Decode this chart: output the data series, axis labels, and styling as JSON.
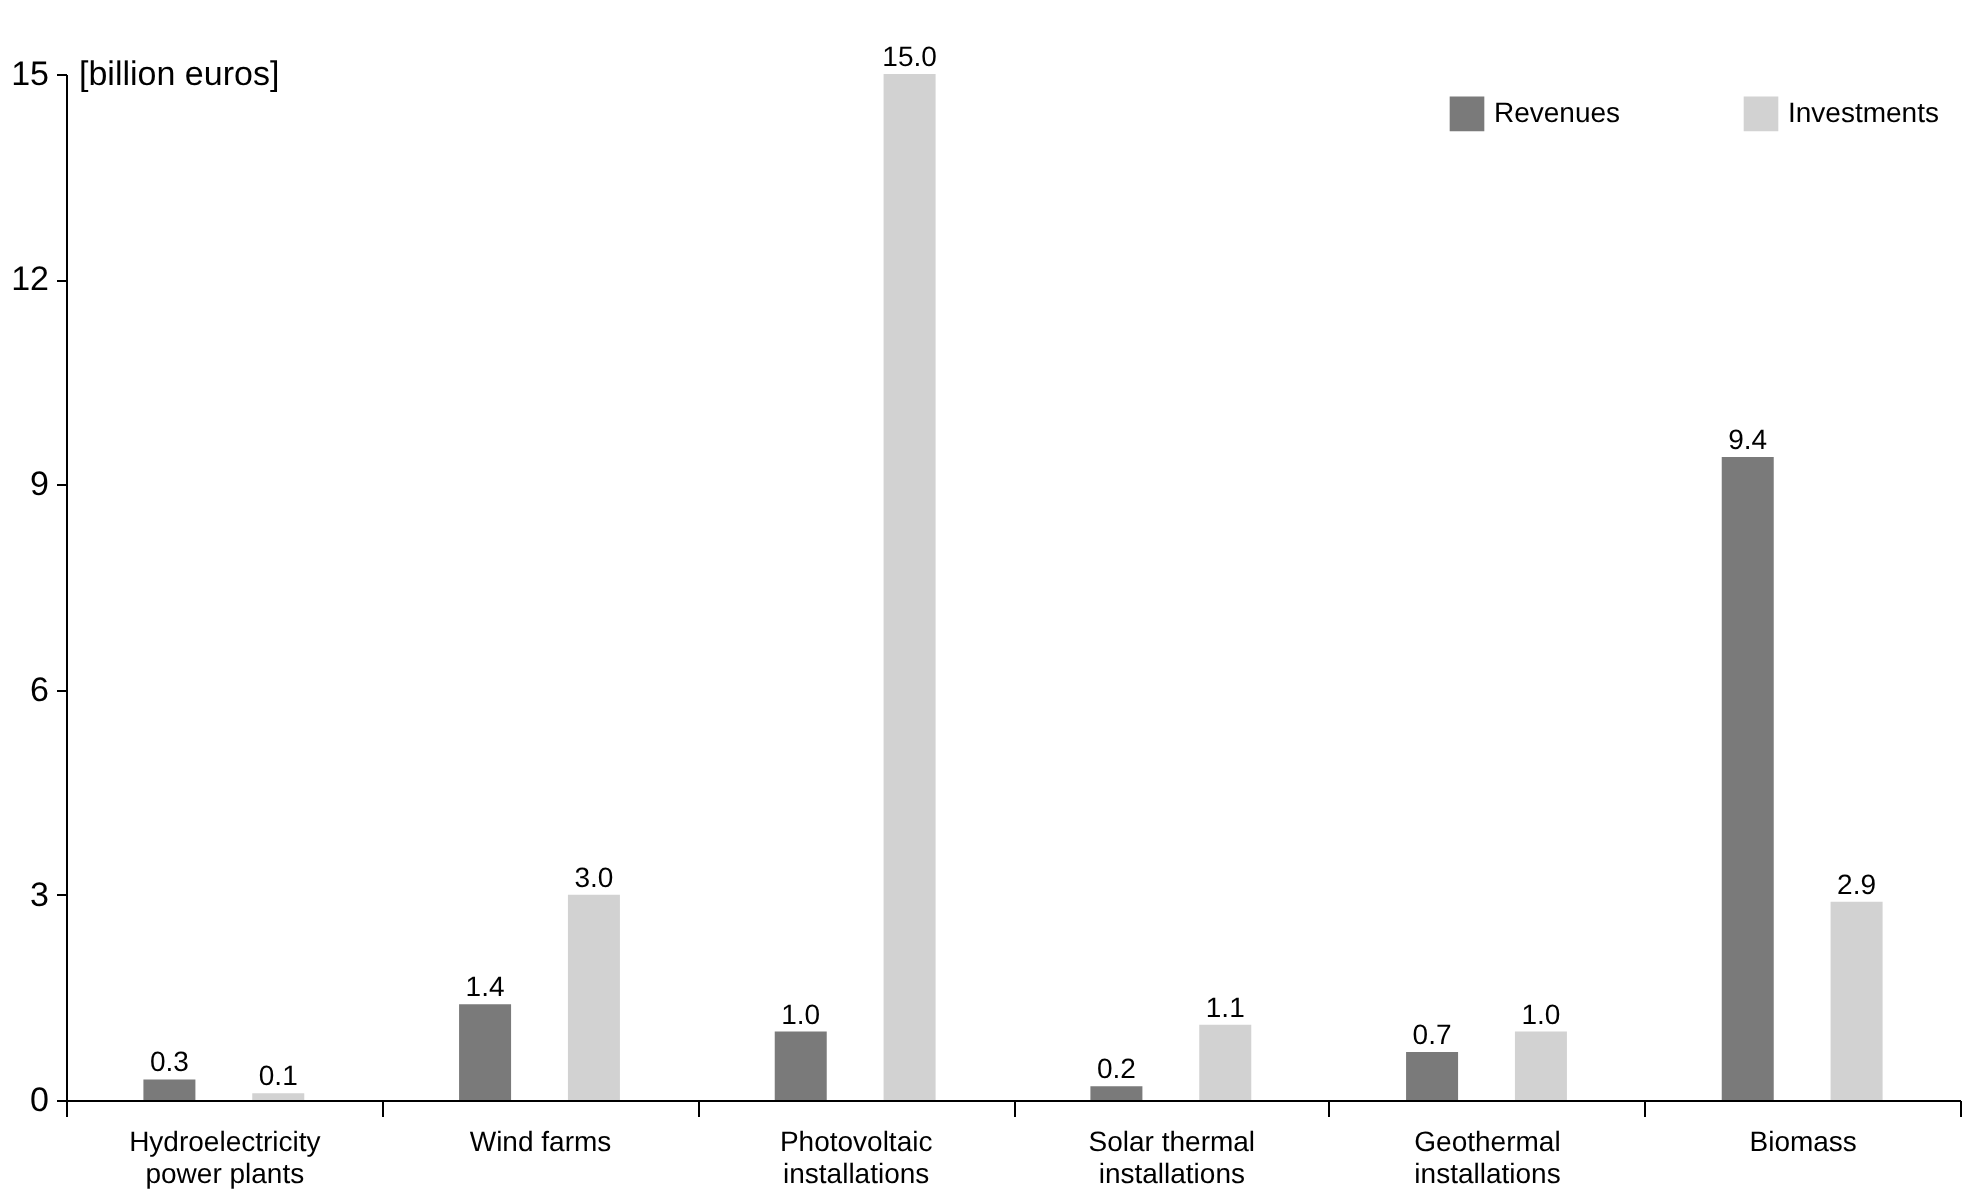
{
  "chart_data": {
    "type": "bar",
    "ylabel": "[billion euros]",
    "categories": [
      "Hydroelectricity\npower plants",
      "Wind farms",
      "Photovoltaic\ninstallations",
      "Solar thermal\ninstallations",
      "Geothermal\ninstallations",
      "Biomass"
    ],
    "series": [
      {
        "name": "Revenues",
        "color": "#7a7a7a",
        "values": [
          0.3,
          1.4,
          1.0,
          0.2,
          0.7,
          9.4
        ],
        "value_labels": [
          "0.3",
          "1.4",
          "1.0",
          "0.2",
          "0.7",
          "9.4"
        ]
      },
      {
        "name": "Investments",
        "color": "#d2d2d2",
        "values": [
          0.1,
          3.0,
          15.0,
          1.1,
          1.0,
          2.9
        ],
        "value_labels": [
          "0.1",
          "3.0",
          "15.0",
          "1.1",
          "1.0",
          "2.9"
        ]
      }
    ],
    "ylim": [
      0,
      15
    ],
    "yticks": [
      0,
      3,
      6,
      9,
      12,
      15
    ],
    "grid": false,
    "legend": "top right"
  }
}
